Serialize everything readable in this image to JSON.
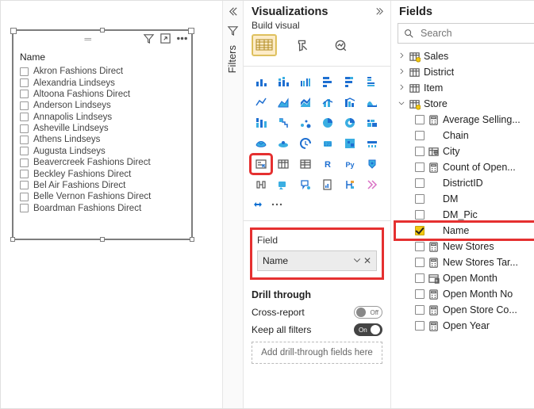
{
  "highlight_color": "#e53030",
  "canvas": {
    "slicer": {
      "title": "Name",
      "items": [
        "Akron Fashions Direct",
        "Alexandria Lindseys",
        "Altoona Fashions Direct",
        "Anderson Lindseys",
        "Annapolis Lindseys",
        "Asheville Lindseys",
        "Athens Lindseys",
        "Augusta Lindseys",
        "Beavercreek Fashions Direct",
        "Beckley Fashions Direct",
        "Bel Air Fashions Direct",
        "Belle Vernon Fashions Direct",
        "Boardman Fashions Direct"
      ]
    }
  },
  "filters": {
    "label": "Filters"
  },
  "viz": {
    "title": "Visualizations",
    "subtitle": "Build visual",
    "field_section_label": "Field",
    "field_chip": "Name",
    "drill_title": "Drill through",
    "cross_report": "Cross-report",
    "cross_report_state": "Off",
    "keep_filters": "Keep all filters",
    "keep_filters_state": "On",
    "drill_placeholder": "Add drill-through fields here"
  },
  "fields": {
    "title": "Fields",
    "search_placeholder": "Search",
    "tables": [
      {
        "name": "Sales",
        "expanded": false,
        "icon": "calc-table"
      },
      {
        "name": "District",
        "expanded": false,
        "icon": "table"
      },
      {
        "name": "Item",
        "expanded": false,
        "icon": "table"
      },
      {
        "name": "Store",
        "expanded": true,
        "icon": "calc-table",
        "fields": [
          {
            "name": "Average Selling...",
            "icon": "calc",
            "checked": false
          },
          {
            "name": "Chain",
            "icon": "none",
            "checked": false
          },
          {
            "name": "City",
            "icon": "geo",
            "checked": false
          },
          {
            "name": "Count of Open...",
            "icon": "calc",
            "checked": false
          },
          {
            "name": "DistrictID",
            "icon": "none",
            "checked": false
          },
          {
            "name": "DM",
            "icon": "none",
            "checked": false
          },
          {
            "name": "DM_Pic",
            "icon": "none",
            "checked": false
          },
          {
            "name": "Name",
            "icon": "none",
            "checked": true,
            "highlight": true
          },
          {
            "name": "New Stores",
            "icon": "calc",
            "checked": false
          },
          {
            "name": "New Stores Tar...",
            "icon": "calc",
            "checked": false
          },
          {
            "name": "Open Month",
            "icon": "hier",
            "checked": false
          },
          {
            "name": "Open Month No",
            "icon": "calc",
            "checked": false
          },
          {
            "name": "Open Store Co...",
            "icon": "calc",
            "checked": false
          },
          {
            "name": "Open Year",
            "icon": "calc",
            "checked": false
          }
        ]
      }
    ]
  }
}
